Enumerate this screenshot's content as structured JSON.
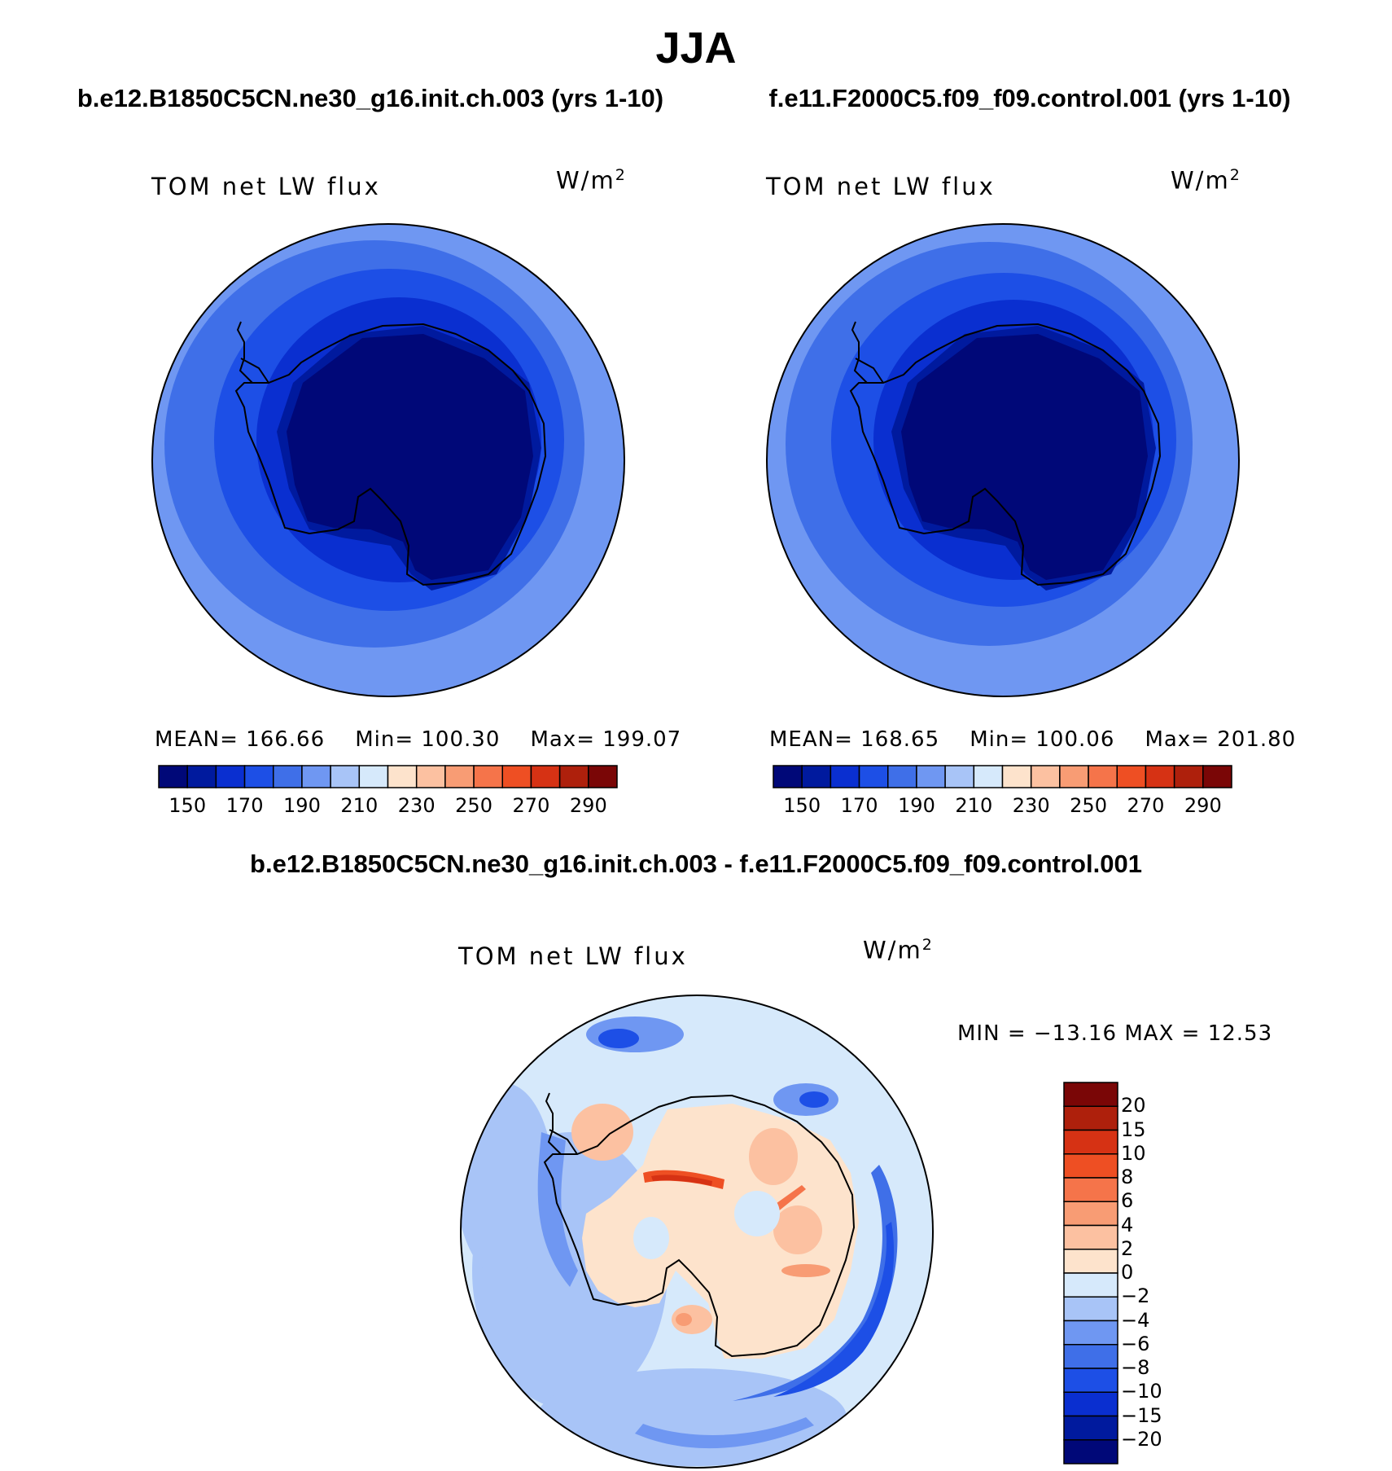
{
  "season": "JJA",
  "panels": {
    "case1": {
      "title": "b.e12.B1850C5CN.ne30_g16.init.ch.003 (yrs 1-10)",
      "variable": "TOM net LW flux",
      "units_base": "W/m",
      "units_exp": "2",
      "stats": {
        "mean_label": "MEAN=",
        "mean": "166.66",
        "min_label": "Min=",
        "min": "100.30",
        "max_label": "Max=",
        "max": "199.07"
      }
    },
    "case2": {
      "title": "f.e11.F2000C5.f09_f09.control.001 (yrs 1-10)",
      "variable": "TOM net LW flux",
      "units_base": "W/m",
      "units_exp": "2",
      "stats": {
        "mean_label": "MEAN=",
        "mean": "168.65",
        "min_label": "Min=",
        "min": "100.06",
        "max_label": "Max=",
        "max": "201.80"
      }
    },
    "diff": {
      "title": "b.e12.B1850C5CN.ne30_g16.init.ch.003 - f.e11.F2000C5.f09_f09.control.001",
      "variable": "TOM net LW flux",
      "units_base": "W/m",
      "units_exp": "2",
      "minmax": "MIN = −13.16 MAX =   12.53"
    }
  },
  "colorbar_abs": {
    "colors": [
      "#000878",
      "#001a9e",
      "#0a2fd0",
      "#1d4fe6",
      "#3f6fe8",
      "#6f97f2",
      "#a8c4f7",
      "#d6e9fb",
      "#fde3cc",
      "#fcc1a1",
      "#f89c74",
      "#f5744a",
      "#ee4f23",
      "#d63214",
      "#ae200c",
      "#7a0606"
    ],
    "labels": [
      "150",
      "170",
      "190",
      "210",
      "230",
      "250",
      "270",
      "290"
    ]
  },
  "colorbar_diff": {
    "colors": [
      "#7a0606",
      "#ae200c",
      "#d63214",
      "#ee4f23",
      "#f5744a",
      "#f89c74",
      "#fcc1a1",
      "#fde3cc",
      "#d6e9fb",
      "#a8c4f7",
      "#6f97f2",
      "#3f6fe8",
      "#1d4fe6",
      "#0a2fd0",
      "#001a9e",
      "#000878"
    ],
    "labels": [
      "20",
      "15",
      "10",
      "8",
      "6",
      "4",
      "2",
      "0",
      "−2",
      "−4",
      "−6",
      "−8",
      "−10",
      "−15",
      "−20"
    ]
  }
}
